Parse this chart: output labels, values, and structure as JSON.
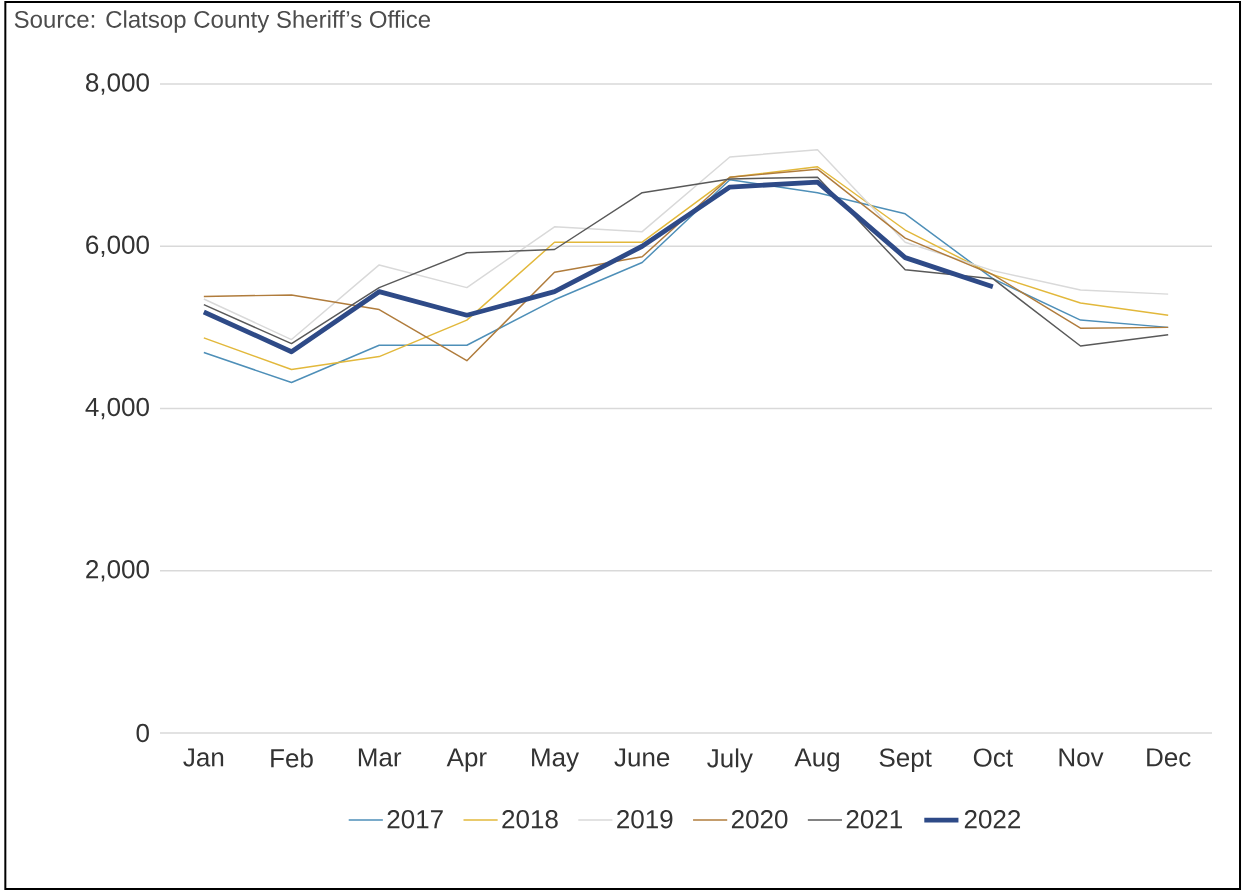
{
  "chart_data": {
    "type": "line",
    "annotations": [
      "Source: Clatsop County Sheriff’s Office"
    ],
    "categories": [
      "Jan",
      "Feb",
      "Mar",
      "Apr",
      "May",
      "June",
      "July",
      "Aug",
      "Sept",
      "Oct",
      "Nov",
      "Dec"
    ],
    "series": [
      {
        "name": "2017",
        "color": "#4e8fb8",
        "values": [
          4690,
          4320,
          4780,
          4780,
          5340,
          5800,
          6820,
          6660,
          6400,
          5600,
          5090,
          5000
        ]
      },
      {
        "name": "2018",
        "color": "#e2b83b",
        "values": [
          4870,
          4480,
          4640,
          5090,
          6050,
          6050,
          6850,
          6980,
          6200,
          5650,
          5300,
          5150
        ]
      },
      {
        "name": "2019",
        "color": "#d9d9d9",
        "values": [
          5350,
          4850,
          5770,
          5490,
          6240,
          6180,
          7100,
          7190,
          6050,
          5700,
          5460,
          5410
        ]
      },
      {
        "name": "2020",
        "color": "#b07c3c",
        "values": [
          5380,
          5400,
          5220,
          4590,
          5680,
          5870,
          6850,
          6950,
          6100,
          5650,
          4990,
          5000
        ]
      },
      {
        "name": "2021",
        "color": "#595959",
        "values": [
          5280,
          4800,
          5490,
          5920,
          5960,
          6660,
          6830,
          6850,
          5710,
          5600,
          4770,
          4910
        ]
      },
      {
        "name": "2022",
        "color": "#2e4a87",
        "values": [
          5190,
          4700,
          5440,
          5150,
          5440,
          6000,
          6730,
          6790,
          5860,
          5500,
          null,
          null
        ]
      }
    ],
    "ylim": [
      0,
      8000
    ],
    "yticks": [
      0,
      {
        "value": 2000,
        "label": "2,000"
      },
      {
        "value": 4000,
        "label": "4,000"
      },
      {
        "value": 6000,
        "label": "6,000"
      },
      {
        "value": 8000,
        "label": "8,000"
      }
    ],
    "grid": "y",
    "legend": "bottom",
    "marker": "none",
    "line_style": "solid"
  }
}
